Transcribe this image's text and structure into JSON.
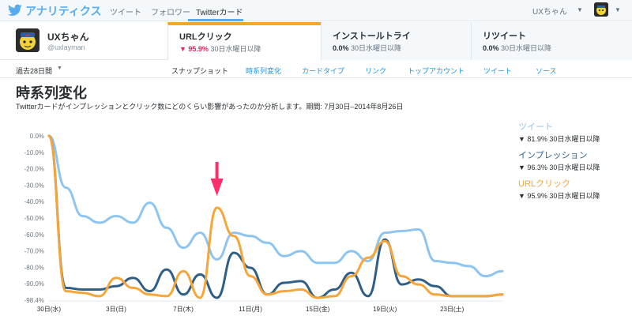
{
  "topnav": {
    "brand": "アナリティクス",
    "items": [
      "ツイート",
      "フォロワー",
      "Twitterカード"
    ],
    "active_index": 2,
    "user": "UXちゃん"
  },
  "profile": {
    "name": "UXちゃん",
    "handle": "@uxlayman"
  },
  "metrics": [
    {
      "title": "URLクリック",
      "value": "▼ 95.9%",
      "sub": " 30日水曜日以降",
      "active": true
    },
    {
      "title": "インストールトライ",
      "value": "0.0%",
      "sub": " 30日水曜日以降",
      "active": false
    },
    {
      "title": "リツイート",
      "value": "0.0%",
      "sub": " 30日水曜日以降",
      "active": false
    }
  ],
  "subnav": {
    "period": "過去28日間",
    "items": [
      "スナップショット",
      "時系列変化",
      "カードタイプ",
      "リンク",
      "トップアカウント",
      "ツイート",
      "ソース"
    ],
    "current_index": 0
  },
  "page": {
    "title": "時系列変化",
    "description": "Twitterカードがインプレッションとクリック数にどのくらい影響があったのか分析します。期間: 7月30日–2014年8月26日"
  },
  "legend": [
    {
      "name": "ツイート",
      "sub": "▼ 81.9% 30日水曜日以降",
      "color": "#8ec5f0"
    },
    {
      "name": "インプレッション",
      "sub": "▼ 96.3% 30日水曜日以降",
      "color": "#2f5f86"
    },
    {
      "name": "URLクリック",
      "sub": "▼ 95.9% 30日水曜日以降",
      "color": "#f5a63a"
    }
  ],
  "chart_data": {
    "type": "line",
    "y_ticks": [
      "0.0%",
      "-10.0%",
      "-20.0%",
      "-30.0%",
      "-40.0%",
      "-50.0%",
      "-60.0%",
      "-70.0%",
      "-80.0%",
      "-90.0%",
      "-98.4%"
    ],
    "ylim": [
      -98.4,
      0
    ],
    "x_tick_labels": [
      "30日(水)",
      "3日(日)",
      "7日(木)",
      "11日(月)",
      "15日(金)",
      "19日(火)",
      "23日(土)"
    ],
    "x_tick_days": [
      0,
      4,
      8,
      12,
      16,
      20,
      24
    ],
    "x_range": [
      0,
      27
    ],
    "series": [
      {
        "name": "ツイート",
        "color": "#8ec5f0",
        "values": [
          0,
          -31,
          -48,
          -52,
          -48,
          -52,
          -40,
          -55,
          -67,
          -58,
          -74,
          -58,
          -60,
          -64,
          -72,
          -69,
          -76,
          -76,
          -69,
          -75,
          -58,
          -57,
          -56,
          -75,
          -76,
          -78,
          -84,
          -81
        ]
      },
      {
        "name": "インプレッション",
        "color": "#2f5f86",
        "values": [
          0,
          -91,
          -92,
          -92,
          -90,
          -85,
          -93,
          -80,
          -95,
          -83,
          -97,
          -70,
          -79,
          -95,
          -88,
          -87,
          -97,
          -92,
          -82,
          -96,
          -62,
          -89,
          -86,
          -90,
          -96,
          -96,
          -96,
          -95
        ]
      },
      {
        "name": "URLクリック",
        "color": "#f5a63a",
        "values": [
          0,
          -93,
          -94,
          -96,
          -85,
          -91,
          -95,
          -96,
          -81,
          -97,
          -43,
          -60,
          -84,
          -95,
          -93,
          -92,
          -97,
          -96,
          -84,
          -73,
          -63,
          -84,
          -89,
          -95,
          -96,
          -96,
          -96,
          -95
        ]
      }
    ],
    "annotation": {
      "type": "arrow",
      "day": 10,
      "color": "#ff2e6a"
    }
  }
}
